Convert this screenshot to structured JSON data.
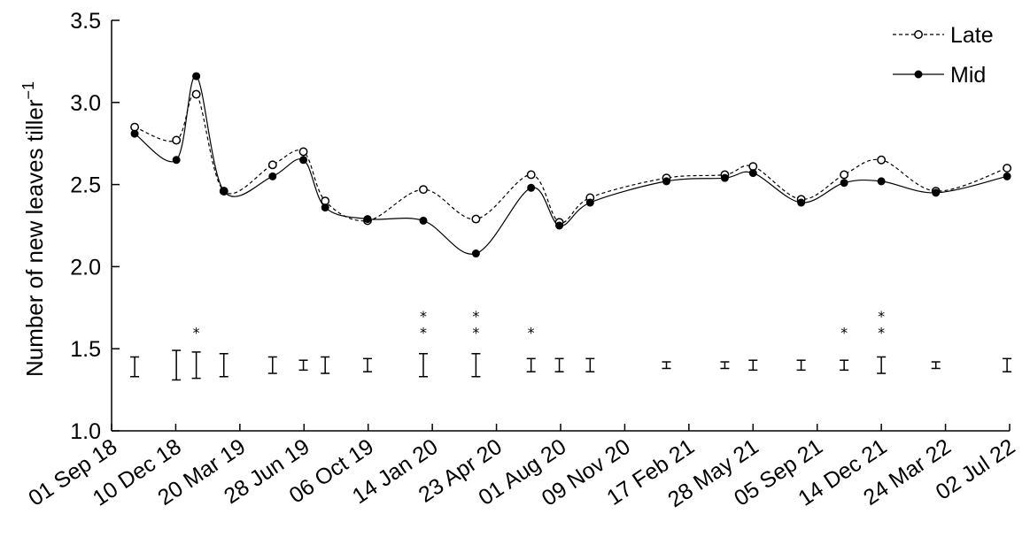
{
  "chart_data": {
    "type": "line",
    "title": "",
    "xlabel": "",
    "ylabel": "Number of new leaves tiller",
    "ylabel_sup": "−1",
    "ylim": [
      1.0,
      3.5
    ],
    "yticks": [
      "1.0",
      "1.5",
      "2.0",
      "2.5",
      "3.0",
      "3.5"
    ],
    "ytick_values": [
      1.0,
      1.5,
      2.0,
      2.5,
      3.0,
      3.5
    ],
    "xtick_labels": [
      "01 Sep 18",
      "10 Dec 18",
      "20 Mar 19",
      "28 Jun 19",
      "06 Oct 19",
      "14 Jan 20",
      "23 Apr 20",
      "01 Aug 20",
      "09 Nov 20",
      "17 Feb 21",
      "28 May 21",
      "05 Sep 21",
      "14 Dec 21",
      "24 Mar 22",
      "02 Jul 22"
    ],
    "x_dates": [
      "2018-10-07",
      "2018-12-11",
      "2019-01-11",
      "2019-02-23",
      "2019-05-10",
      "2019-06-27",
      "2019-07-31",
      "2019-10-05",
      "2019-12-31",
      "2020-03-22",
      "2020-06-16",
      "2020-07-30",
      "2020-09-16",
      "2021-01-13",
      "2021-04-14",
      "2021-05-28",
      "2021-08-11",
      "2021-10-17",
      "2021-12-14",
      "2022-03-09",
      "2022-06-28"
    ],
    "series": [
      {
        "name": "Late",
        "style": "dashed-open-circle",
        "values": [
          2.85,
          2.77,
          3.05,
          2.46,
          2.62,
          2.7,
          2.4,
          2.28,
          2.47,
          2.29,
          2.56,
          2.27,
          2.42,
          2.54,
          2.56,
          2.61,
          2.41,
          2.56,
          2.65,
          2.46,
          2.6
        ]
      },
      {
        "name": "Mid",
        "style": "solid-filled-circle",
        "values": [
          2.81,
          2.65,
          3.16,
          2.46,
          2.55,
          2.65,
          2.36,
          2.29,
          2.28,
          2.08,
          2.48,
          2.25,
          2.39,
          2.52,
          2.54,
          2.57,
          2.39,
          2.51,
          2.52,
          2.45,
          2.55
        ]
      }
    ],
    "error_bars": {
      "center": [
        1.39,
        1.4,
        1.4,
        1.4,
        1.4,
        1.4,
        1.4,
        1.4,
        1.4,
        1.4,
        1.4,
        1.4,
        1.4,
        1.4,
        1.4,
        1.4,
        1.4,
        1.4,
        1.4,
        1.4,
        1.4
      ],
      "half_width": [
        0.06,
        0.09,
        0.08,
        0.07,
        0.05,
        0.03,
        0.05,
        0.04,
        0.07,
        0.07,
        0.04,
        0.04,
        0.04,
        0.02,
        0.02,
        0.03,
        0.03,
        0.03,
        0.05,
        0.02,
        0.04
      ]
    },
    "significance": {
      "symbol": "*",
      "counts": [
        0,
        0,
        1,
        0,
        0,
        0,
        0,
        0,
        2,
        2,
        1,
        0,
        0,
        0,
        0,
        0,
        0,
        1,
        2,
        0,
        0
      ]
    },
    "legend": {
      "placement": "top-right",
      "entries": [
        "Late",
        "Mid"
      ]
    },
    "grid": false
  }
}
